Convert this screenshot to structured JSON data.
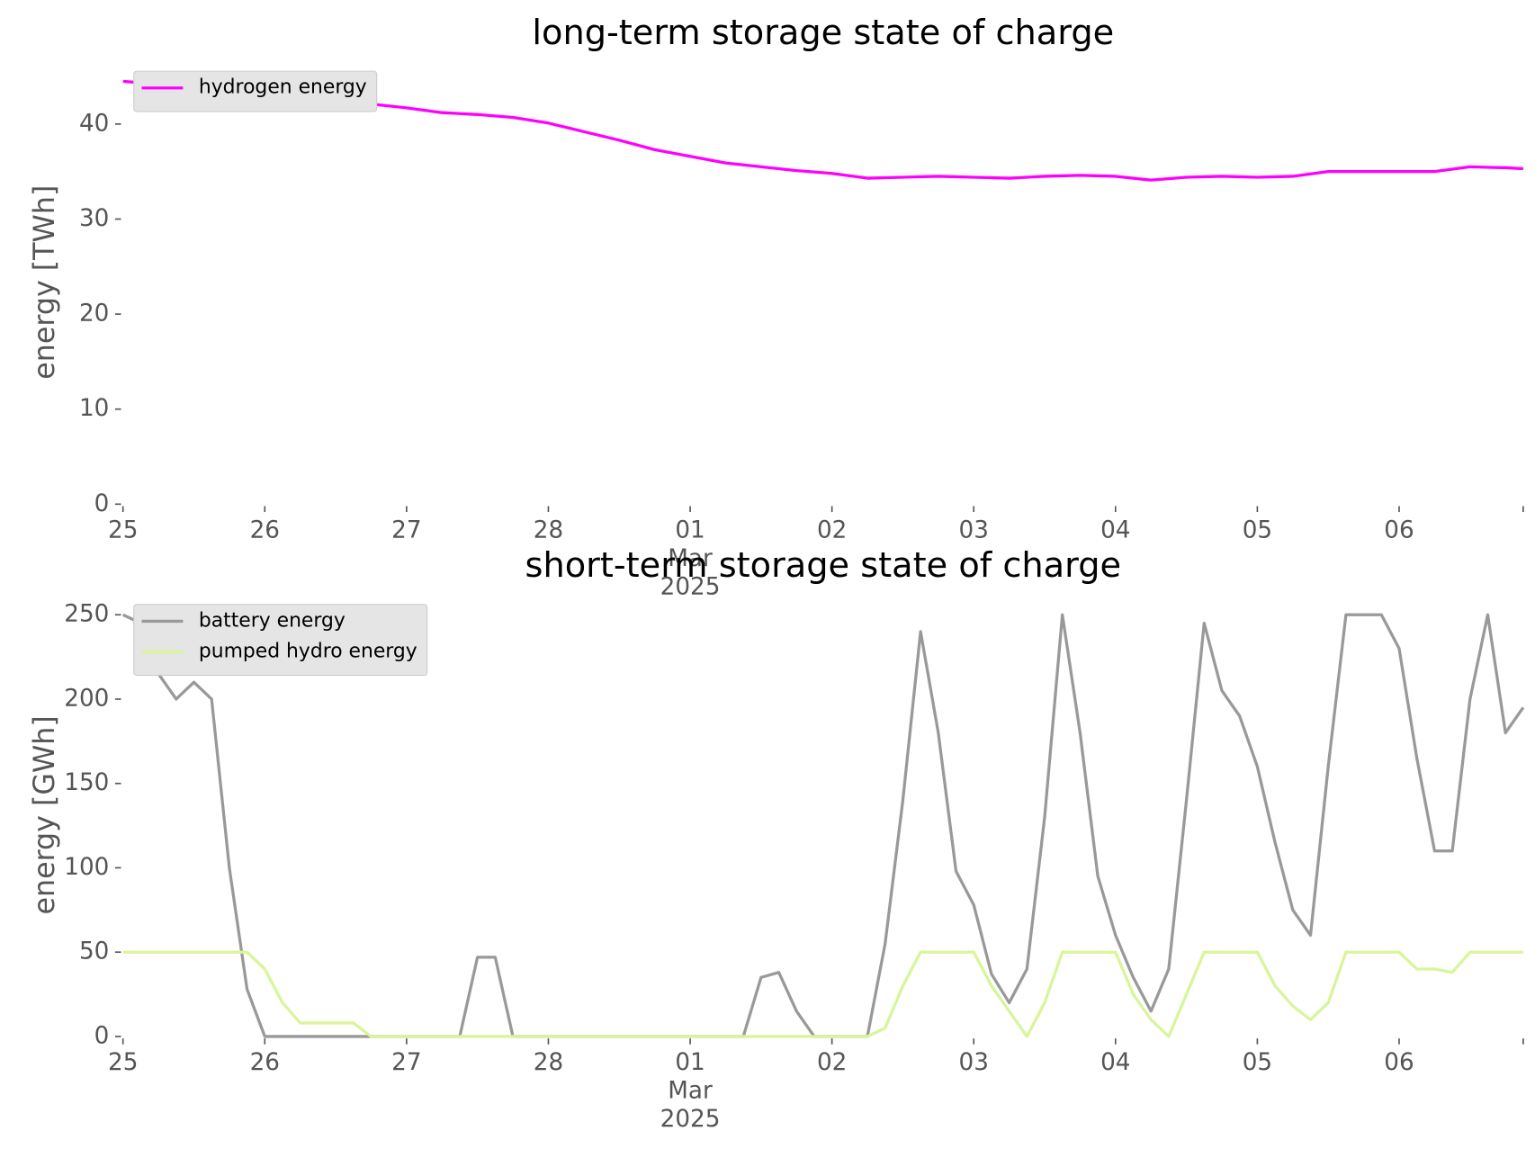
{
  "chart_data": [
    {
      "type": "line",
      "title": "long-term storage state of charge",
      "y_label": "energy [TWh]",
      "x": [
        "2025-02-25 00:00",
        "2025-02-25 06:00",
        "2025-02-25 12:00",
        "2025-02-25 18:00",
        "2025-02-26 00:00",
        "2025-02-26 06:00",
        "2025-02-26 12:00",
        "2025-02-26 18:00",
        "2025-02-27 00:00",
        "2025-02-27 06:00",
        "2025-02-27 12:00",
        "2025-02-27 18:00",
        "2025-02-28 00:00",
        "2025-02-28 06:00",
        "2025-02-28 12:00",
        "2025-02-28 18:00",
        "2025-03-01 00:00",
        "2025-03-01 06:00",
        "2025-03-01 12:00",
        "2025-03-01 18:00",
        "2025-03-02 00:00",
        "2025-03-02 06:00",
        "2025-03-02 12:00",
        "2025-03-02 18:00",
        "2025-03-03 00:00",
        "2025-03-03 06:00",
        "2025-03-03 12:00",
        "2025-03-03 18:00",
        "2025-03-04 00:00",
        "2025-03-04 06:00",
        "2025-03-04 12:00",
        "2025-03-04 18:00",
        "2025-03-05 00:00",
        "2025-03-05 06:00",
        "2025-03-05 12:00",
        "2025-03-05 18:00",
        "2025-03-06 00:00",
        "2025-03-06 06:00",
        "2025-03-06 12:00",
        "2025-03-06 18:00",
        "2025-03-06 21:00"
      ],
      "series": [
        {
          "name": "hydrogen energy",
          "color": "#ff00ff",
          "values": [
            44.5,
            44.2,
            43.8,
            43.4,
            43.0,
            42.6,
            42.4,
            42.1,
            41.7,
            41.2,
            41.0,
            40.7,
            40.1,
            39.2,
            38.3,
            37.3,
            36.6,
            35.9,
            35.5,
            35.1,
            34.8,
            34.3,
            34.4,
            34.5,
            34.4,
            34.3,
            34.5,
            34.6,
            34.5,
            34.1,
            34.4,
            34.5,
            34.4,
            34.5,
            35.0,
            35.0,
            35.0,
            35.0,
            35.5,
            35.4,
            35.3
          ]
        }
      ],
      "xlim": [
        "2025-02-25 00:00",
        "2025-03-06 21:00"
      ],
      "xticks": [
        {
          "value": "2025-02-25 00:00",
          "label": "25"
        },
        {
          "value": "2025-02-26 00:00",
          "label": "26"
        },
        {
          "value": "2025-02-27 00:00",
          "label": "27"
        },
        {
          "value": "2025-02-28 00:00",
          "label": "28"
        },
        {
          "value": "2025-03-01 00:00",
          "label": "01\nMar\n2025"
        },
        {
          "value": "2025-03-02 00:00",
          "label": "02"
        },
        {
          "value": "2025-03-03 00:00",
          "label": "03"
        },
        {
          "value": "2025-03-04 00:00",
          "label": "04"
        },
        {
          "value": "2025-03-05 00:00",
          "label": "05"
        },
        {
          "value": "2025-03-06 00:00",
          "label": "06"
        }
      ],
      "ylim": [
        0,
        46.7
      ],
      "yticks": [
        0,
        10,
        20,
        30,
        40
      ],
      "grid": false,
      "legend": "upper left"
    },
    {
      "type": "line",
      "title": "short-term storage state of charge",
      "y_label": "energy [GWh]",
      "x": [
        "2025-02-25 00:00",
        "2025-02-25 03:00",
        "2025-02-25 06:00",
        "2025-02-25 09:00",
        "2025-02-25 12:00",
        "2025-02-25 15:00",
        "2025-02-25 18:00",
        "2025-02-25 21:00",
        "2025-02-26 00:00",
        "2025-02-26 03:00",
        "2025-02-26 06:00",
        "2025-02-26 09:00",
        "2025-02-26 12:00",
        "2025-02-26 15:00",
        "2025-02-26 18:00",
        "2025-02-26 21:00",
        "2025-02-27 00:00",
        "2025-02-27 03:00",
        "2025-02-27 06:00",
        "2025-02-27 09:00",
        "2025-02-27 12:00",
        "2025-02-27 15:00",
        "2025-02-27 18:00",
        "2025-02-27 21:00",
        "2025-02-28 00:00",
        "2025-02-28 03:00",
        "2025-02-28 06:00",
        "2025-02-28 09:00",
        "2025-02-28 12:00",
        "2025-02-28 15:00",
        "2025-02-28 18:00",
        "2025-02-28 21:00",
        "2025-03-01 00:00",
        "2025-03-01 03:00",
        "2025-03-01 06:00",
        "2025-03-01 09:00",
        "2025-03-01 12:00",
        "2025-03-01 15:00",
        "2025-03-01 18:00",
        "2025-03-01 21:00",
        "2025-03-02 00:00",
        "2025-03-02 03:00",
        "2025-03-02 06:00",
        "2025-03-02 09:00",
        "2025-03-02 12:00",
        "2025-03-02 15:00",
        "2025-03-02 18:00",
        "2025-03-02 21:00",
        "2025-03-03 00:00",
        "2025-03-03 03:00",
        "2025-03-03 06:00",
        "2025-03-03 09:00",
        "2025-03-03 12:00",
        "2025-03-03 15:00",
        "2025-03-03 18:00",
        "2025-03-03 21:00",
        "2025-03-04 00:00",
        "2025-03-04 03:00",
        "2025-03-04 06:00",
        "2025-03-04 09:00",
        "2025-03-04 12:00",
        "2025-03-04 15:00",
        "2025-03-04 18:00",
        "2025-03-04 21:00",
        "2025-03-05 00:00",
        "2025-03-05 03:00",
        "2025-03-05 06:00",
        "2025-03-05 09:00",
        "2025-03-05 12:00",
        "2025-03-05 15:00",
        "2025-03-05 18:00",
        "2025-03-05 21:00",
        "2025-03-06 00:00",
        "2025-03-06 03:00",
        "2025-03-06 06:00",
        "2025-03-06 09:00",
        "2025-03-06 12:00",
        "2025-03-06 15:00",
        "2025-03-06 18:00",
        "2025-03-06 21:00"
      ],
      "series": [
        {
          "name": "battery energy",
          "color": "#999999",
          "values": [
            250,
            245,
            215,
            200,
            210,
            200,
            100,
            28,
            0,
            0,
            0,
            0,
            0,
            0,
            0,
            0,
            0,
            0,
            0,
            0,
            47,
            47,
            0,
            0,
            0,
            0,
            0,
            0,
            0,
            0,
            0,
            0,
            0,
            0,
            0,
            0,
            35,
            38,
            15,
            0,
            0,
            0,
            0,
            55,
            140,
            240,
            180,
            98,
            78,
            37,
            20,
            40,
            130,
            250,
            180,
            95,
            60,
            35,
            15,
            40,
            140,
            245,
            205,
            190,
            160,
            115,
            75,
            60,
            160,
            250,
            250,
            250,
            230,
            165,
            110,
            110,
            200,
            250,
            180,
            195
          ]
        },
        {
          "name": "pumped hydro energy",
          "color": "#d9f59a",
          "values": [
            50,
            50,
            50,
            50,
            50,
            50,
            50,
            50,
            40,
            20,
            8,
            8,
            8,
            8,
            0,
            0,
            0,
            0,
            0,
            0,
            0,
            0,
            0,
            0,
            0,
            0,
            0,
            0,
            0,
            0,
            0,
            0,
            0,
            0,
            0,
            0,
            0,
            0,
            0,
            0,
            0,
            0,
            0,
            5,
            30,
            50,
            50,
            50,
            50,
            30,
            15,
            0,
            20,
            50,
            50,
            50,
            50,
            25,
            10,
            0,
            25,
            50,
            50,
            50,
            50,
            30,
            18,
            10,
            20,
            50,
            50,
            50,
            50,
            40,
            40,
            38,
            50,
            50,
            50,
            50
          ]
        }
      ],
      "xlim": [
        "2025-02-25 00:00",
        "2025-03-06 21:00"
      ],
      "xticks": [
        {
          "value": "2025-02-25 00:00",
          "label": "25"
        },
        {
          "value": "2025-02-26 00:00",
          "label": "26"
        },
        {
          "value": "2025-02-27 00:00",
          "label": "27"
        },
        {
          "value": "2025-02-28 00:00",
          "label": "28"
        },
        {
          "value": "2025-03-01 00:00",
          "label": "01\nMar\n2025"
        },
        {
          "value": "2025-03-02 00:00",
          "label": "02"
        },
        {
          "value": "2025-03-03 00:00",
          "label": "03"
        },
        {
          "value": "2025-03-04 00:00",
          "label": "04"
        },
        {
          "value": "2025-03-05 00:00",
          "label": "05"
        },
        {
          "value": "2025-03-06 00:00",
          "label": "06"
        }
      ],
      "ylim": [
        0,
        262.5
      ],
      "yticks": [
        0,
        50,
        100,
        150,
        200,
        250
      ],
      "grid": false,
      "legend": "upper left"
    }
  ]
}
